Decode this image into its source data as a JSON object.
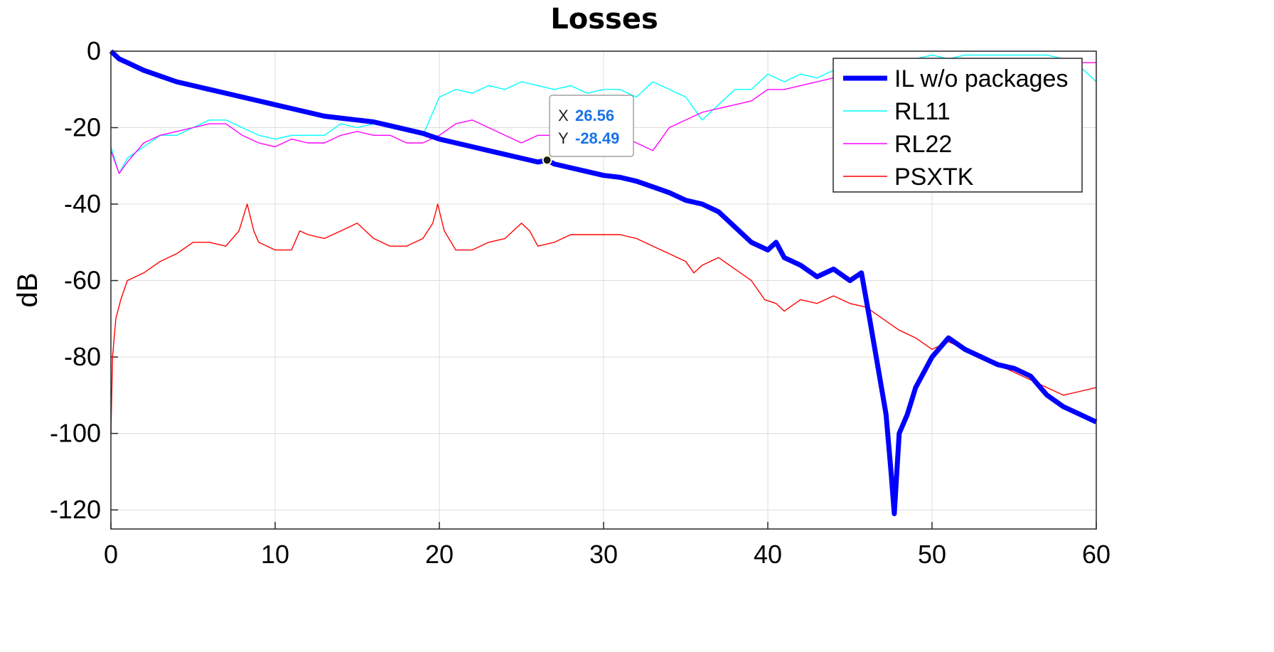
{
  "chart_data": {
    "type": "line",
    "title": "Losses",
    "xlabel": "",
    "ylabel": "dB",
    "xlim": [
      0,
      60
    ],
    "ylim": [
      -125,
      0
    ],
    "xticks": [
      "0",
      "10",
      "20",
      "30",
      "40",
      "50",
      "60"
    ],
    "yticks": [
      "0",
      "-20",
      "-40",
      "-60",
      "-80",
      "-100",
      "-120"
    ],
    "grid": true,
    "legend_position": "top-right",
    "colors": {
      "IL w/o packages": "#0000ff",
      "RL11": "#00ffff",
      "RL22": "#ff00ff",
      "PSXTK": "#ff0000"
    },
    "series": [
      {
        "name": "IL w/o packages",
        "x": [
          0,
          0.5,
          1,
          2,
          3,
          4,
          5,
          6,
          7,
          8,
          9,
          10,
          11,
          12,
          13,
          14,
          15,
          16,
          17,
          18,
          19,
          20,
          21,
          22,
          23,
          24,
          25,
          26,
          26.56,
          27,
          28,
          29,
          30,
          31,
          32,
          33,
          34,
          35,
          36,
          37,
          38,
          39,
          40,
          40.5,
          41,
          42,
          43,
          44,
          45,
          45.7,
          46.2,
          46.8,
          47.2,
          47.5,
          47.7,
          48,
          48.5,
          49,
          50,
          51,
          52,
          53,
          54,
          55,
          56,
          57,
          58,
          59,
          60
        ],
        "y": [
          0,
          -2,
          -3,
          -5,
          -6.5,
          -8,
          -9,
          -10,
          -11,
          -12,
          -13,
          -14,
          -15,
          -16,
          -17,
          -17.5,
          -18,
          -18.5,
          -19.5,
          -20.5,
          -21.5,
          -23,
          -24,
          -25,
          -26,
          -27,
          -28,
          -29,
          -28.49,
          -29.5,
          -30.5,
          -31.5,
          -32.5,
          -33,
          -34,
          -35.5,
          -37,
          -39,
          -40,
          -42,
          -46,
          -50,
          -52,
          -50,
          -54,
          -56,
          -59,
          -57,
          -60,
          -58,
          -70,
          -85,
          -95,
          -110,
          -121,
          -100,
          -95,
          -88,
          -80,
          -75,
          -78,
          -80,
          -82,
          -83,
          -85,
          -90,
          -93,
          -95,
          -97
        ]
      },
      {
        "name": "RL11",
        "x": [
          0,
          0.5,
          1,
          2,
          3,
          4,
          5,
          6,
          7,
          8,
          9,
          10,
          11,
          12,
          13,
          14,
          15,
          16,
          17,
          18,
          19,
          20,
          21,
          22,
          23,
          24,
          25,
          26,
          27,
          28,
          29,
          30,
          31,
          32,
          33,
          34,
          35,
          36,
          37,
          38,
          39,
          40,
          41,
          42,
          43,
          44,
          45,
          46,
          47,
          48,
          49,
          50,
          51,
          52,
          53,
          54,
          55,
          56,
          57,
          58,
          59,
          60
        ],
        "y": [
          -25,
          -32,
          -28,
          -25,
          -22,
          -22,
          -20,
          -18,
          -18,
          -20,
          -22,
          -23,
          -22,
          -22,
          -22,
          -19,
          -20,
          -19,
          -20,
          -21,
          -22,
          -12,
          -10,
          -11,
          -9,
          -10,
          -8,
          -9,
          -10,
          -9,
          -11,
          -10,
          -10,
          -12,
          -8,
          -10,
          -12,
          -18,
          -14,
          -10,
          -10,
          -6,
          -8,
          -6,
          -7,
          -5,
          -6,
          -4,
          -3,
          -2,
          -2,
          -1,
          -2,
          -1,
          -1,
          -1,
          -1,
          -1,
          -1,
          -2,
          -4,
          -8
        ]
      },
      {
        "name": "RL22",
        "x": [
          0,
          0.5,
          1,
          2,
          3,
          4,
          5,
          6,
          7,
          8,
          9,
          10,
          11,
          12,
          13,
          14,
          15,
          16,
          17,
          18,
          19,
          20,
          21,
          22,
          23,
          24,
          25,
          26,
          27,
          28,
          29,
          30,
          31,
          32,
          33,
          34,
          35,
          36,
          37,
          38,
          39,
          40,
          41,
          42,
          43,
          44,
          45,
          46,
          47,
          48,
          49,
          50,
          51,
          52,
          53,
          54,
          55,
          56,
          57,
          58,
          59,
          60
        ],
        "y": [
          -26,
          -32,
          -29,
          -24,
          -22,
          -21,
          -20,
          -19,
          -19,
          -22,
          -24,
          -25,
          -23,
          -24,
          -24,
          -22,
          -21,
          -22,
          -22,
          -24,
          -24,
          -22,
          -19,
          -18,
          -20,
          -22,
          -24,
          -22,
          -22,
          -23,
          -22,
          -21,
          -22,
          -24,
          -26,
          -20,
          -18,
          -16,
          -15,
          -14,
          -13,
          -10,
          -10,
          -9,
          -8,
          -7,
          -6,
          -5,
          -5,
          -5,
          -4,
          -4,
          -3,
          -3,
          -3,
          -3,
          -3,
          -3,
          -3,
          -3,
          -3,
          -3
        ]
      },
      {
        "name": "PSXTK",
        "x": [
          0,
          0.1,
          0.3,
          0.6,
          1,
          2,
          3,
          4,
          5,
          6,
          7,
          7.8,
          8.3,
          8.7,
          9,
          10,
          11,
          11.5,
          12,
          13,
          14,
          15,
          16,
          17,
          18,
          19,
          19.6,
          19.9,
          20.3,
          21,
          22,
          23,
          24,
          25,
          25.5,
          26,
          27,
          28,
          29,
          30,
          31,
          32,
          33,
          34,
          35,
          35.5,
          36,
          37,
          38,
          39,
          39.8,
          40.5,
          41,
          42,
          43,
          44,
          45,
          46,
          47,
          48,
          49,
          50,
          51,
          52,
          53,
          54,
          55,
          56,
          57,
          58,
          59,
          60
        ],
        "y": [
          -100,
          -80,
          -70,
          -65,
          -60,
          -58,
          -55,
          -53,
          -50,
          -50,
          -51,
          -47,
          -40,
          -47,
          -50,
          -52,
          -52,
          -47,
          -48,
          -49,
          -47,
          -45,
          -49,
          -51,
          -51,
          -49,
          -45,
          -40,
          -47,
          -52,
          -52,
          -50,
          -49,
          -45,
          -47,
          -51,
          -50,
          -48,
          -48,
          -48,
          -48,
          -49,
          -51,
          -53,
          -55,
          -58,
          -56,
          -54,
          -57,
          -60,
          -65,
          -66,
          -68,
          -65,
          -66,
          -64,
          -66,
          -67,
          -70,
          -73,
          -75,
          -78,
          -76,
          -78,
          -80,
          -82,
          -84,
          -86,
          -88,
          -90,
          -89,
          -88
        ]
      }
    ],
    "datatip": {
      "x_key": "X",
      "x_value": "26.56",
      "y_key": "Y",
      "y_value": "-28.49"
    }
  }
}
